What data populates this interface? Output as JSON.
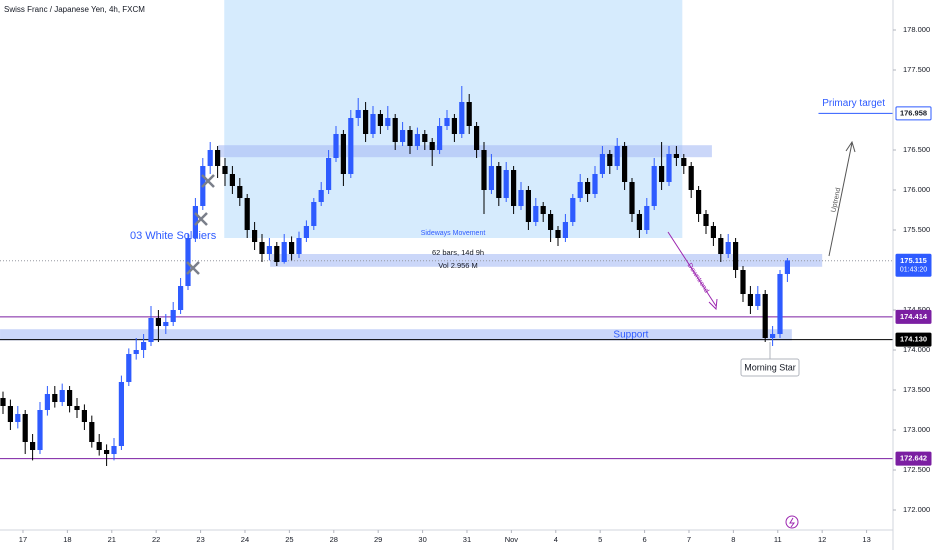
{
  "chart_data": {
    "type": "candlestick",
    "title": "Swiss Franc / Japanese Yen, 4h, FXCM",
    "up_color": "#2e5bff",
    "down_color": "#000000",
    "grid": false,
    "ylim": [
      171.75,
      178.375
    ],
    "yticks": [
      {
        "value": 172,
        "label": "172.000"
      },
      {
        "value": 172.5,
        "label": "172.500"
      },
      {
        "value": 173,
        "label": "173.000"
      },
      {
        "value": 173.5,
        "label": "173.500"
      },
      {
        "value": 174,
        "label": "174.000"
      },
      {
        "value": 174.5,
        "label": "174.500"
      },
      {
        "value": 175.5,
        "label": "175.500"
      },
      {
        "value": 176,
        "label": "176.000"
      },
      {
        "value": 176.5,
        "label": "176.500"
      },
      {
        "value": 177.5,
        "label": "177.500"
      },
      {
        "value": 178,
        "label": "178.000"
      }
    ],
    "xticks": [
      {
        "value": 2.7,
        "label": "17"
      },
      {
        "value": 8.7,
        "label": "18"
      },
      {
        "value": 14.7,
        "label": "21"
      },
      {
        "value": 20.7,
        "label": "22"
      },
      {
        "value": 26.7,
        "label": "23"
      },
      {
        "value": 32.7,
        "label": "24"
      },
      {
        "value": 38.7,
        "label": "25"
      },
      {
        "value": 44.7,
        "label": "28"
      },
      {
        "value": 50.7,
        "label": "29"
      },
      {
        "value": 56.7,
        "label": "30"
      },
      {
        "value": 62.7,
        "label": "31"
      },
      {
        "value": 68.7,
        "label": "Nov"
      },
      {
        "value": 74.7,
        "label": "4"
      },
      {
        "value": 80.7,
        "label": "5"
      },
      {
        "value": 86.7,
        "label": "6"
      },
      {
        "value": 92.7,
        "label": "7"
      },
      {
        "value": 98.7,
        "label": "8"
      },
      {
        "value": 104.7,
        "label": "11"
      },
      {
        "value": 110.7,
        "label": "12"
      },
      {
        "value": 116.7,
        "label": "13"
      }
    ],
    "candles": [
      [
        173.4,
        173.48,
        173.2,
        173.3
      ],
      [
        173.3,
        173.38,
        173.0,
        173.1
      ],
      [
        173.1,
        173.3,
        173.02,
        173.2
      ],
      [
        173.2,
        173.25,
        172.7,
        172.85
      ],
      [
        172.85,
        172.95,
        172.62,
        172.75
      ],
      [
        172.75,
        173.35,
        172.7,
        173.25
      ],
      [
        173.25,
        173.55,
        173.18,
        173.45
      ],
      [
        173.45,
        173.55,
        173.28,
        173.35
      ],
      [
        173.35,
        173.58,
        173.3,
        173.5
      ],
      [
        173.5,
        173.55,
        173.22,
        173.3
      ],
      [
        173.3,
        173.4,
        173.15,
        173.25
      ],
      [
        173.25,
        173.32,
        173.0,
        173.1
      ],
      [
        173.1,
        173.18,
        172.78,
        172.85
      ],
      [
        172.85,
        172.95,
        172.68,
        172.75
      ],
      [
        172.75,
        172.82,
        172.55,
        172.7
      ],
      [
        172.7,
        172.9,
        172.62,
        172.8
      ],
      [
        172.8,
        173.68,
        172.75,
        173.6
      ],
      [
        173.6,
        174.02,
        173.55,
        173.95
      ],
      [
        173.95,
        174.15,
        173.88,
        174.0
      ],
      [
        174.0,
        174.2,
        173.9,
        174.1
      ],
      [
        174.1,
        174.55,
        174.05,
        174.4
      ],
      [
        174.4,
        174.5,
        174.1,
        174.3
      ],
      [
        174.3,
        174.45,
        174.2,
        174.35
      ],
      [
        174.35,
        174.6,
        174.3,
        174.5
      ],
      [
        174.5,
        174.9,
        174.45,
        174.8
      ],
      [
        174.8,
        175.45,
        174.75,
        175.4
      ],
      [
        175.4,
        175.9,
        175.35,
        175.8
      ],
      [
        175.8,
        176.4,
        175.75,
        176.3
      ],
      [
        176.3,
        176.6,
        176.2,
        176.5
      ],
      [
        176.5,
        176.55,
        176.15,
        176.3
      ],
      [
        176.3,
        176.4,
        176.05,
        176.2
      ],
      [
        176.2,
        176.3,
        175.95,
        176.05
      ],
      [
        176.05,
        176.15,
        175.8,
        175.9
      ],
      [
        175.9,
        175.95,
        175.4,
        175.5
      ],
      [
        175.5,
        175.6,
        175.25,
        175.35
      ],
      [
        175.35,
        175.45,
        175.1,
        175.2
      ],
      [
        175.2,
        175.4,
        175.12,
        175.3
      ],
      [
        175.3,
        175.35,
        175.05,
        175.1
      ],
      [
        175.1,
        175.45,
        175.08,
        175.35
      ],
      [
        175.35,
        175.42,
        175.12,
        175.2
      ],
      [
        175.2,
        175.48,
        175.15,
        175.4
      ],
      [
        175.4,
        175.62,
        175.35,
        175.55
      ],
      [
        175.55,
        175.9,
        175.5,
        175.85
      ],
      [
        175.85,
        176.1,
        175.8,
        176.0
      ],
      [
        176.0,
        176.5,
        175.95,
        176.4
      ],
      [
        176.4,
        176.8,
        176.35,
        176.7
      ],
      [
        176.7,
        176.75,
        176.05,
        176.2
      ],
      [
        176.2,
        177.0,
        176.15,
        176.9
      ],
      [
        176.9,
        177.15,
        176.8,
        177.0
      ],
      [
        177.0,
        177.1,
        176.6,
        176.7
      ],
      [
        176.7,
        177.05,
        176.65,
        176.95
      ],
      [
        176.95,
        177.0,
        176.7,
        176.8
      ],
      [
        176.8,
        177.05,
        176.75,
        176.9
      ],
      [
        176.9,
        176.95,
        176.5,
        176.6
      ],
      [
        176.6,
        176.85,
        176.55,
        176.75
      ],
      [
        176.75,
        176.8,
        176.45,
        176.55
      ],
      [
        176.55,
        176.78,
        176.5,
        176.7
      ],
      [
        176.7,
        176.75,
        176.5,
        176.6
      ],
      [
        176.6,
        176.65,
        176.3,
        176.5
      ],
      [
        176.5,
        176.9,
        176.45,
        176.8
      ],
      [
        176.8,
        177.0,
        176.75,
        176.9
      ],
      [
        176.9,
        176.95,
        176.6,
        176.7
      ],
      [
        176.7,
        177.3,
        176.65,
        177.1
      ],
      [
        177.1,
        177.2,
        176.7,
        176.8
      ],
      [
        176.8,
        176.85,
        176.4,
        176.5
      ],
      [
        176.5,
        176.6,
        175.7,
        176.0
      ],
      [
        176.0,
        176.45,
        175.95,
        176.3
      ],
      [
        176.3,
        176.35,
        175.8,
        175.9
      ],
      [
        175.9,
        176.35,
        175.85,
        176.25
      ],
      [
        176.25,
        176.3,
        175.7,
        175.8
      ],
      [
        175.8,
        176.1,
        175.75,
        176.0
      ],
      [
        176.0,
        176.05,
        175.5,
        175.6
      ],
      [
        175.6,
        175.9,
        175.55,
        175.8
      ],
      [
        175.8,
        175.85,
        175.6,
        175.7
      ],
      [
        175.7,
        175.75,
        175.35,
        175.5
      ],
      [
        175.5,
        175.55,
        175.3,
        175.4
      ],
      [
        175.4,
        175.7,
        175.35,
        175.6
      ],
      [
        175.6,
        175.95,
        175.55,
        175.9
      ],
      [
        175.9,
        176.2,
        175.85,
        176.1
      ],
      [
        176.1,
        176.15,
        175.85,
        175.95
      ],
      [
        175.95,
        176.3,
        175.9,
        176.2
      ],
      [
        176.2,
        176.55,
        176.15,
        176.45
      ],
      [
        176.45,
        176.5,
        176.2,
        176.3
      ],
      [
        176.3,
        176.65,
        176.25,
        176.55
      ],
      [
        176.55,
        176.6,
        176.0,
        176.1
      ],
      [
        176.1,
        176.15,
        175.6,
        175.7
      ],
      [
        175.7,
        175.75,
        175.4,
        175.5
      ],
      [
        175.5,
        175.9,
        175.45,
        175.8
      ],
      [
        175.8,
        176.4,
        175.75,
        176.3
      ],
      [
        176.3,
        176.6,
        176.0,
        176.1
      ],
      [
        176.1,
        176.55,
        176.05,
        176.45
      ],
      [
        176.45,
        176.55,
        176.3,
        176.4
      ],
      [
        176.4,
        176.45,
        176.2,
        176.3
      ],
      [
        176.3,
        176.35,
        175.9,
        176.0
      ],
      [
        176.0,
        176.05,
        175.6,
        175.7
      ],
      [
        175.7,
        175.75,
        175.45,
        175.55
      ],
      [
        175.55,
        175.6,
        175.3,
        175.4
      ],
      [
        175.4,
        175.45,
        175.1,
        175.2
      ],
      [
        175.2,
        175.45,
        175.15,
        175.35
      ],
      [
        175.35,
        175.4,
        174.9,
        175.0
      ],
      [
        175.0,
        175.05,
        174.6,
        174.7
      ],
      [
        174.7,
        174.8,
        174.45,
        174.55
      ],
      [
        174.55,
        174.8,
        174.5,
        174.7
      ],
      [
        174.7,
        174.75,
        174.1,
        174.15
      ],
      [
        174.15,
        174.3,
        174.05,
        174.2
      ],
      [
        174.2,
        175.0,
        174.15,
        174.95
      ],
      [
        174.95,
        175.15,
        174.85,
        175.12
      ]
    ],
    "zones": [
      {
        "low": 175.4,
        "high": 178.375,
        "start": 29.9,
        "end": 91.8,
        "color": "#bbdefb"
      },
      {
        "low": 176.41,
        "high": 176.56,
        "start": 29.1,
        "end": 95.8,
        "color": "#a9bdf5"
      },
      {
        "low": 175.04,
        "high": 175.2,
        "start": 36.1,
        "end": 110.7,
        "color": "#a9bdf5"
      },
      {
        "low": 174.12,
        "high": 174.26,
        "start": -0.4,
        "end": 106.6,
        "color": "#a9bdf5",
        "label": "Support"
      }
    ],
    "hlines": [
      {
        "value": 175.115,
        "label": "175.115",
        "sublabel": "01:43:20",
        "color": "#2e5bff",
        "style": "dotted"
      },
      {
        "value": 174.414,
        "label": "174.414",
        "color": "#7b1fa2"
      },
      {
        "value": 174.13,
        "label": "174.130",
        "color": "#000000"
      },
      {
        "value": 172.642,
        "label": "172.642",
        "color": "#7b1fa2"
      }
    ],
    "target": {
      "value": 176.958,
      "label": "176.958",
      "text": "Primary target",
      "start": 110.2
    },
    "annotations": {
      "soldiers": "03 White Soldiers",
      "sideways": "Sideways Movement",
      "bars": "62 bars, 14d 9h",
      "volume": "Vol 2.956 M",
      "downtrend": "Downtrend",
      "uptrend": "Uptrend",
      "morning_star": "Morning Star"
    }
  }
}
